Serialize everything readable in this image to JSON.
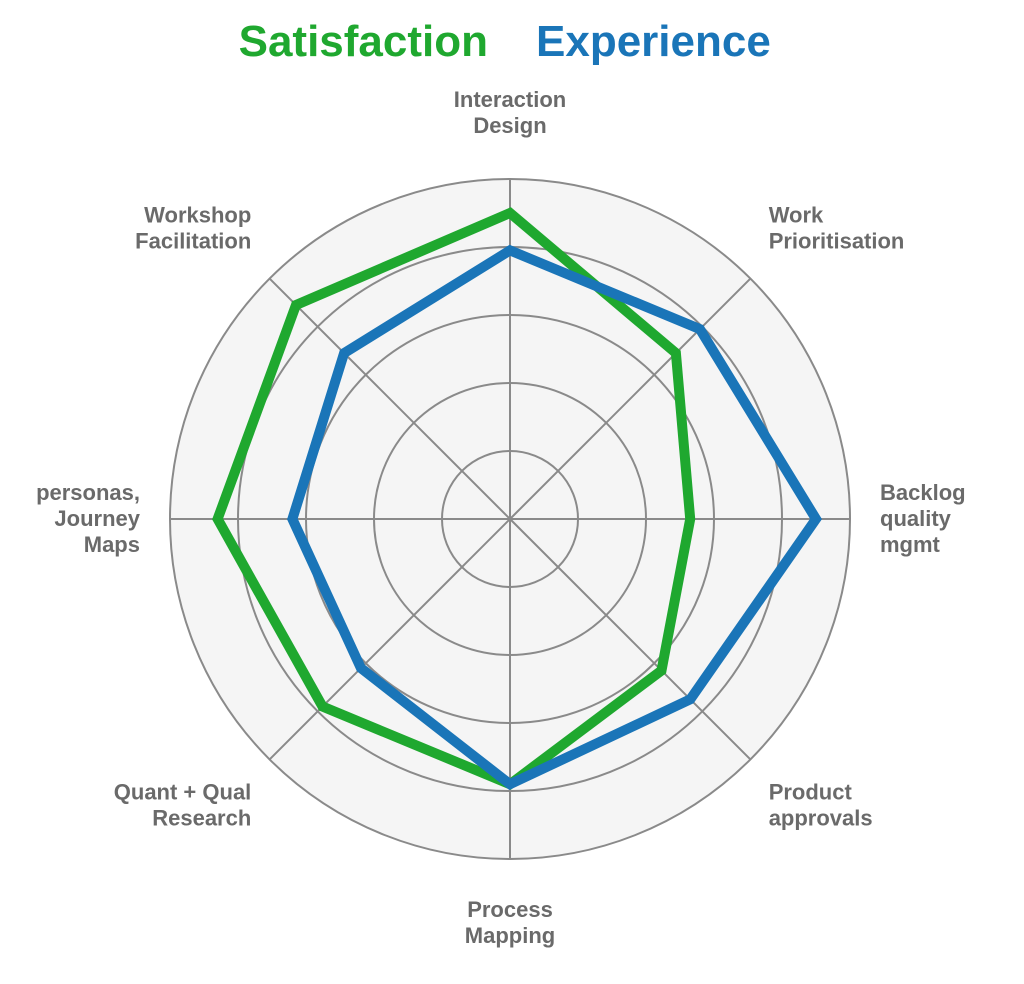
{
  "chart_data": {
    "type": "radar",
    "axes": [
      [
        "Interaction",
        "Design"
      ],
      [
        "Work",
        "Prioritisation"
      ],
      [
        "Backlog",
        "quality",
        "mgmt"
      ],
      [
        "Product",
        "approvals"
      ],
      [
        "Process",
        "Mapping"
      ],
      [
        "Quant + Qual",
        "Research"
      ],
      [
        "personas,",
        "Journey",
        "Maps"
      ],
      [
        "Workshop",
        "Facilitation"
      ]
    ],
    "rlim": [
      0,
      5
    ],
    "grid": true,
    "legend_position": "top",
    "series": [
      {
        "name": "Satisfaction",
        "color": "#1fa82f",
        "values": [
          4.5,
          3.45,
          2.65,
          3.15,
          3.9,
          3.9,
          4.3,
          4.45
        ]
      },
      {
        "name": "Experience",
        "color": "#1a75b8",
        "values": [
          3.95,
          3.95,
          4.5,
          3.75,
          3.9,
          3.1,
          3.2,
          3.45
        ]
      }
    ]
  }
}
